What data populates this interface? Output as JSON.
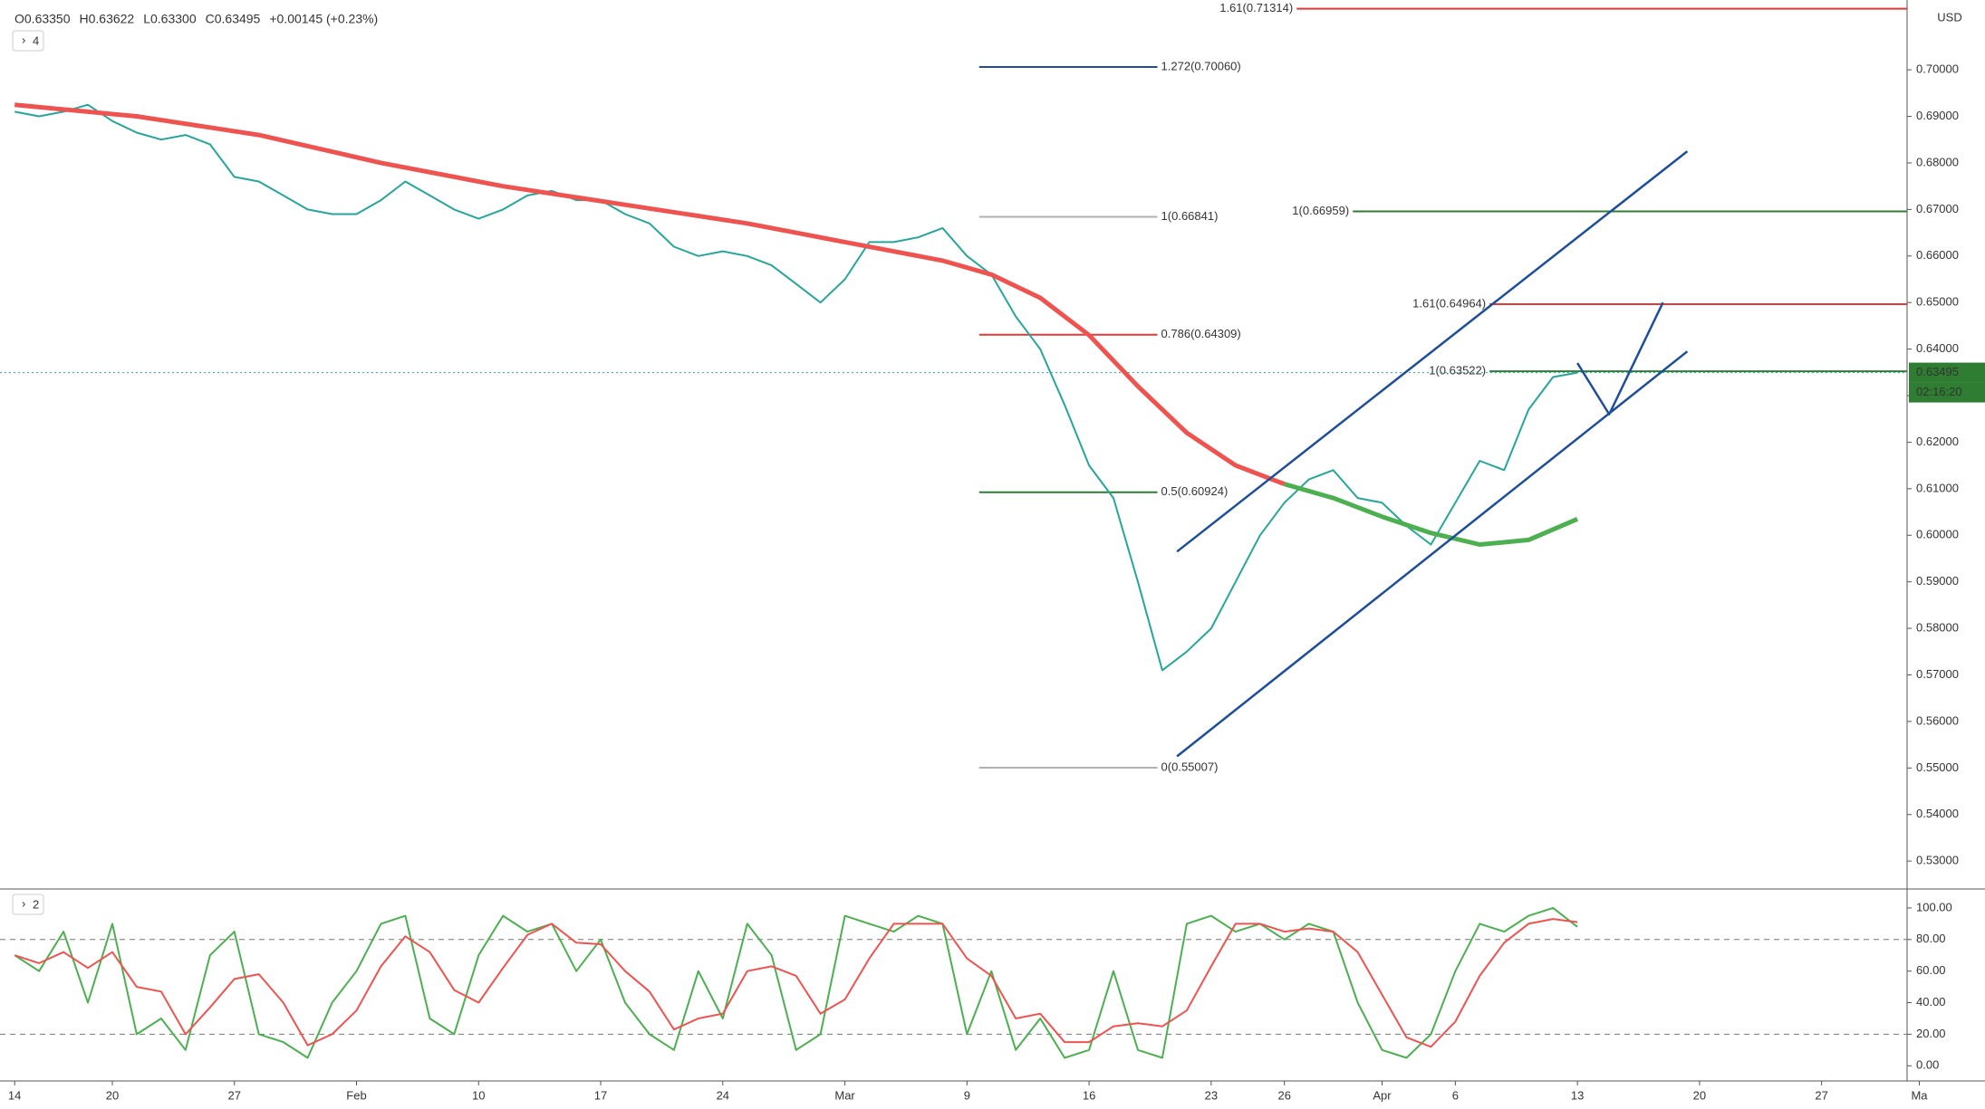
{
  "chart_data": {
    "type": "line",
    "header": [
      "O0.63350",
      "H0.63622",
      "L0.63300",
      "C0.63495",
      "+0.00145 (+0.23%)"
    ],
    "pane_labels": [
      "4",
      "2"
    ],
    "currency": "USD",
    "countdown": "02:16:20",
    "last_price": 0.63495,
    "xlim": [
      -0.6,
      77.5
    ],
    "xticks": [
      {
        "value": 0,
        "label": "14"
      },
      {
        "value": 4,
        "label": "20"
      },
      {
        "value": 9,
        "label": "27"
      },
      {
        "value": 14,
        "label": "Feb"
      },
      {
        "value": 19,
        "label": "10"
      },
      {
        "value": 24,
        "label": "17"
      },
      {
        "value": 29,
        "label": "24"
      },
      {
        "value": 34,
        "label": "Mar"
      },
      {
        "value": 39,
        "label": "9"
      },
      {
        "value": 44,
        "label": "16"
      },
      {
        "value": 49,
        "label": "23"
      },
      {
        "value": 52,
        "label": "26"
      },
      {
        "value": 56,
        "label": "Apr"
      },
      {
        "value": 59,
        "label": "6"
      },
      {
        "value": 64,
        "label": "13"
      },
      {
        "value": 69,
        "label": "20"
      },
      {
        "value": 74,
        "label": "27"
      },
      {
        "value": 78,
        "label": "Ma"
      }
    ],
    "ylim": [
      0.524,
      0.715
    ],
    "yticks": [
      {
        "value": 0.53,
        "label": "0.53000"
      },
      {
        "value": 0.54,
        "label": "0.54000"
      },
      {
        "value": 0.55,
        "label": "0.55000"
      },
      {
        "value": 0.56,
        "label": "0.56000"
      },
      {
        "value": 0.57,
        "label": "0.57000"
      },
      {
        "value": 0.58,
        "label": "0.58000"
      },
      {
        "value": 0.59,
        "label": "0.59000"
      },
      {
        "value": 0.6,
        "label": "0.60000"
      },
      {
        "value": 0.61,
        "label": "0.61000"
      },
      {
        "value": 0.62,
        "label": "0.62000"
      },
      {
        "value": 0.63,
        "label": "0.63000"
      },
      {
        "value": 0.64,
        "label": "0.64000"
      },
      {
        "value": 0.65,
        "label": "0.65000"
      },
      {
        "value": 0.66,
        "label": "0.66000"
      },
      {
        "value": 0.67,
        "label": "0.67000"
      },
      {
        "value": 0.68,
        "label": "0.68000"
      },
      {
        "value": 0.69,
        "label": "0.69000"
      },
      {
        "value": 0.7,
        "label": "0.70000"
      }
    ],
    "series": [
      {
        "color": "#26a69a",
        "x": [
          0,
          1,
          2,
          3,
          4,
          5,
          6,
          7,
          8,
          9,
          10,
          11,
          12,
          13,
          14,
          15,
          16,
          17,
          18,
          19,
          20,
          21,
          22,
          23,
          24,
          25,
          26,
          27,
          28,
          29,
          30,
          31,
          32,
          33,
          34,
          35,
          36,
          37,
          38,
          39,
          40,
          41,
          42,
          43,
          44,
          45,
          46,
          47,
          48,
          49,
          50,
          51,
          52,
          53,
          54,
          55,
          56,
          57,
          58,
          59,
          60,
          61,
          62,
          63,
          64
        ],
        "values": [
          0.691,
          0.69,
          0.691,
          0.6925,
          0.689,
          0.6865,
          0.685,
          0.686,
          0.684,
          0.677,
          0.676,
          0.673,
          0.67,
          0.669,
          0.669,
          0.672,
          0.676,
          0.673,
          0.67,
          0.668,
          0.67,
          0.673,
          0.674,
          0.672,
          0.672,
          0.669,
          0.667,
          0.662,
          0.66,
          0.661,
          0.66,
          0.658,
          0.654,
          0.65,
          0.655,
          0.663,
          0.663,
          0.664,
          0.666,
          0.66,
          0.656,
          0.647,
          0.64,
          0.628,
          0.615,
          0.608,
          0.59,
          0.571,
          0.575,
          0.58,
          0.59,
          0.6,
          0.607,
          0.612,
          0.614,
          0.608,
          0.607,
          0.602,
          0.598,
          0.607,
          0.616,
          0.614,
          0.627,
          0.634,
          0.63495
        ],
        "width": 2
      },
      {
        "color": "#ef5350",
        "x": [
          0,
          5,
          10,
          15,
          20,
          25,
          30,
          34,
          38,
          40,
          42,
          44,
          46,
          48,
          50,
          52
        ],
        "values": [
          0.6925,
          0.69,
          0.686,
          0.68,
          0.675,
          0.671,
          0.667,
          0.663,
          0.659,
          0.656,
          0.651,
          0.643,
          0.632,
          0.622,
          0.615,
          0.611
        ],
        "width": 5
      },
      {
        "color": "#4caf50",
        "x": [
          52,
          54,
          56,
          58,
          60,
          62,
          64
        ],
        "values": [
          0.611,
          0.608,
          0.604,
          0.6005,
          0.598,
          0.599,
          0.6035
        ],
        "width": 5
      }
    ],
    "fib_levels": [
      {
        "label": "1.61(0.71314)",
        "value": 0.71314,
        "color": "#e53935",
        "x_start": 52.5
      },
      {
        "label": "1.272(0.70060)",
        "value": 0.7006,
        "color": "#1e4e9a",
        "x_start": 39.5,
        "x_end": 46.8
      },
      {
        "label": "1(0.66841)",
        "value": 0.66841,
        "color": "#b0b0b0",
        "x_start": 39.5,
        "x_end": 46.8
      },
      {
        "label": "0.786(0.64309)",
        "value": 0.64309,
        "color": "#e53935",
        "x_start": 39.5,
        "x_end": 46.8
      },
      {
        "label": "0.5(0.60924)",
        "value": 0.60924,
        "color": "#2e7d32",
        "x_start": 39.5,
        "x_end": 46.8
      },
      {
        "label": "0(0.55007)",
        "value": 0.55007,
        "color": "#b0b0b0",
        "x_start": 39.5,
        "x_end": 46.8
      },
      {
        "label": "1(0.66959)",
        "value": 0.66959,
        "color": "#2e7d32",
        "x_start": 54.8
      },
      {
        "label": "1.61(0.64964)",
        "value": 0.64964,
        "color": "#e53935",
        "x_start": 60.4
      },
      {
        "label": "1(0.63522)",
        "value": 0.63522,
        "color": "#2e7d32",
        "x_start": 60.4
      }
    ],
    "drawings": [
      {
        "color": "#1e4e9a",
        "x": [
          47.6,
          68.5
        ],
        "values": [
          0.5965,
          0.6825
        ]
      },
      {
        "color": "#1e4e9a",
        "x": [
          47.6,
          68.5
        ],
        "values": [
          0.5525,
          0.6395
        ]
      },
      {
        "color": "#1e4e9a",
        "x": [
          64.0,
          65.3,
          67.5
        ],
        "values": [
          0.637,
          0.626,
          0.65
        ]
      }
    ],
    "stoch": {
      "ylim": [
        -9.6,
        112
      ],
      "yticks": [
        {
          "value": 0,
          "label": "0.00"
        },
        {
          "value": 20,
          "label": "20.00"
        },
        {
          "value": 40,
          "label": "40.00"
        },
        {
          "value": 60,
          "label": "60.00"
        },
        {
          "value": 80,
          "label": "80.00"
        },
        {
          "value": 100,
          "label": "100.00"
        }
      ],
      "levels": [
        20,
        80
      ],
      "series": [
        {
          "color": "#4caf50",
          "values": [
            70,
            60,
            85,
            40,
            90,
            20,
            30,
            10,
            70,
            85,
            20,
            15,
            5,
            40,
            60,
            90,
            95,
            30,
            20,
            70,
            95,
            85,
            90,
            60,
            80,
            40,
            20,
            10,
            60,
            30,
            90,
            70,
            10,
            20,
            95,
            90,
            85,
            95,
            90,
            20,
            60,
            10,
            30,
            5,
            10,
            60,
            10,
            5,
            90,
            95,
            85,
            90,
            80,
            90,
            85,
            40,
            10,
            5,
            20,
            60,
            90,
            85,
            95,
            100,
            88
          ]
        },
        {
          "color": "#ef5350",
          "values": [
            70,
            65,
            72,
            62,
            72,
            50,
            47,
            20,
            37,
            55,
            58,
            40,
            13,
            20,
            35,
            63,
            82,
            72,
            48,
            40,
            62,
            83,
            90,
            78,
            77,
            60,
            47,
            23,
            30,
            33,
            60,
            63,
            57,
            33,
            42,
            68,
            90,
            90,
            90,
            68,
            57,
            30,
            33,
            15,
            15,
            25,
            27,
            25,
            35,
            63,
            90,
            90,
            85,
            87,
            85,
            72,
            45,
            18,
            12,
            28,
            57,
            78,
            90,
            93,
            91
          ]
        }
      ]
    }
  }
}
